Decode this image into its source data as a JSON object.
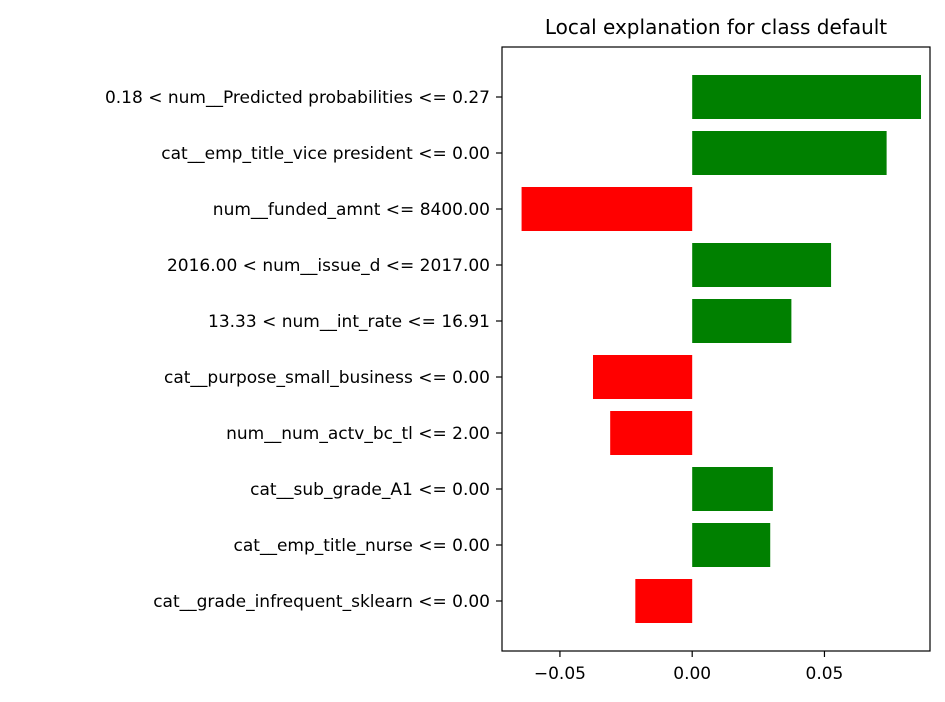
{
  "chart_data": {
    "type": "bar",
    "orientation": "horizontal",
    "title": "Local explanation for class default",
    "xlabel": "",
    "ylabel": "",
    "categories": [
      "0.18 < num__Predicted probabilities <= 0.27",
      "cat__emp_title_vice president <= 0.00",
      "num__funded_amnt <= 8400.00",
      "2016.00 < num__issue_d <= 2017.00",
      "13.33 < num__int_rate <= 16.91",
      "cat__purpose_small_business <= 0.00",
      "num__num_actv_bc_tl <= 2.00",
      "cat__sub_grade_A1 <= 0.00",
      "cat__emp_title_nurse <= 0.00",
      "cat__grade_infrequent_sklearn <= 0.00"
    ],
    "values": [
      0.0865,
      0.0735,
      -0.0645,
      0.0525,
      0.0375,
      -0.0375,
      -0.031,
      0.0305,
      0.0295,
      -0.0215
    ],
    "xlim": [
      -0.0719,
      0.0899
    ],
    "xticks": [
      -0.05,
      0.0,
      0.05
    ],
    "xtick_labels": [
      "−0.05",
      "0.00",
      "0.05"
    ],
    "grid": false,
    "colors": {
      "positive": "#008000",
      "negative": "#ff0000"
    }
  }
}
